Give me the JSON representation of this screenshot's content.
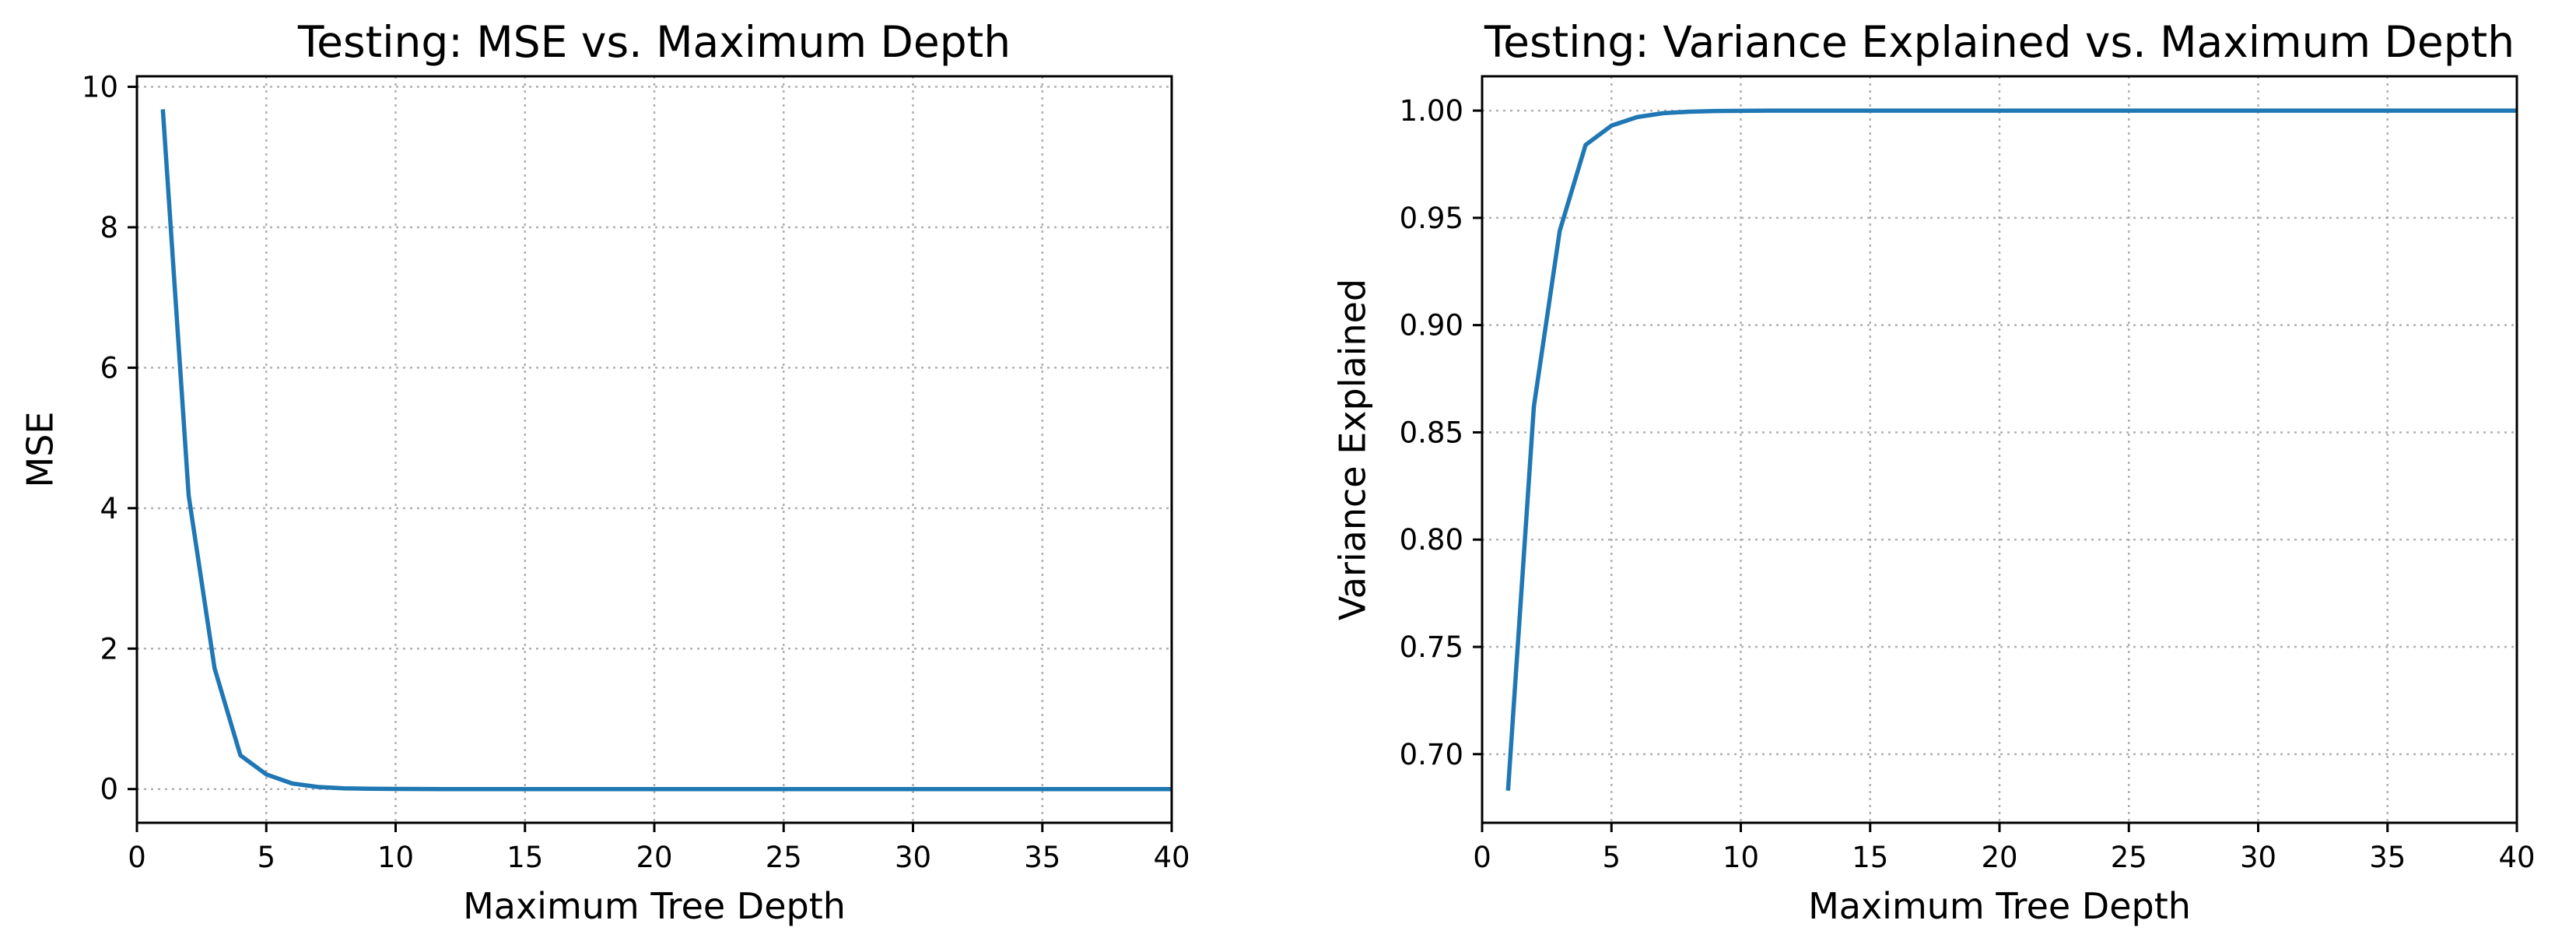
{
  "style": {
    "line_color": "#1f77b4",
    "grid": true,
    "grid_style": "dotted"
  },
  "chart_data": [
    {
      "type": "line",
      "title": "Testing: MSE vs. Maximum Depth",
      "xlabel": "Maximum Tree Depth",
      "ylabel": "MSE",
      "xlim": [
        0,
        40
      ],
      "ylim": [
        -0.48,
        10.15
      ],
      "xticks": [
        0,
        5,
        10,
        15,
        20,
        25,
        30,
        35,
        40
      ],
      "yticks": [
        0,
        2,
        4,
        6,
        8,
        10
      ],
      "xtick_labels": [
        "0",
        "5",
        "10",
        "15",
        "20",
        "25",
        "30",
        "35",
        "40"
      ],
      "ytick_labels": [
        "0",
        "2",
        "4",
        "6",
        "8",
        "10"
      ],
      "series": [
        {
          "x": [
            1,
            2,
            3,
            4,
            5,
            6,
            7,
            8,
            9,
            10,
            11,
            12,
            13,
            14,
            15,
            16,
            17,
            18,
            19,
            20,
            21,
            22,
            23,
            24,
            25,
            26,
            27,
            28,
            29,
            30,
            31,
            32,
            33,
            34,
            35,
            36,
            37,
            38,
            39,
            40
          ],
          "y": [
            9.68,
            4.18,
            1.72,
            0.48,
            0.21,
            0.08,
            0.03,
            0.01,
            0.005,
            0.002,
            0.001,
            0,
            0,
            0,
            0,
            0,
            0,
            0,
            0,
            0,
            0,
            0,
            0,
            0,
            0,
            0,
            0,
            0,
            0,
            0,
            0,
            0,
            0,
            0,
            0,
            0,
            0,
            0,
            0,
            0
          ]
        }
      ]
    },
    {
      "type": "line",
      "title": "Testing: Variance Explained vs. Maximum Depth",
      "xlabel": "Maximum Tree Depth",
      "ylabel": "Variance Explained",
      "xlim": [
        0,
        40
      ],
      "ylim": [
        0.668,
        1.016
      ],
      "xticks": [
        0,
        5,
        10,
        15,
        20,
        25,
        30,
        35,
        40
      ],
      "yticks": [
        0.7,
        0.75,
        0.8,
        0.85,
        0.9,
        0.95,
        1.0
      ],
      "xtick_labels": [
        "0",
        "5",
        "10",
        "15",
        "20",
        "25",
        "30",
        "35",
        "40"
      ],
      "ytick_labels": [
        "0.70",
        "0.75",
        "0.80",
        "0.85",
        "0.90",
        "0.95",
        "1.00"
      ],
      "series": [
        {
          "x": [
            1,
            2,
            3,
            4,
            5,
            6,
            7,
            8,
            9,
            10,
            11,
            12,
            13,
            14,
            15,
            16,
            17,
            18,
            19,
            20,
            21,
            22,
            23,
            24,
            25,
            26,
            27,
            28,
            29,
            30,
            31,
            32,
            33,
            34,
            35,
            36,
            37,
            38,
            39,
            40
          ],
          "y": [
            0.683,
            0.862,
            0.944,
            0.984,
            0.993,
            0.997,
            0.9988,
            0.9995,
            0.9998,
            0.9999,
            1.0,
            1.0,
            1.0,
            1.0,
            1.0,
            1.0,
            1.0,
            1.0,
            1.0,
            1.0,
            1.0,
            1.0,
            1.0,
            1.0,
            1.0,
            1.0,
            1.0,
            1.0,
            1.0,
            1.0,
            1.0,
            1.0,
            1.0,
            1.0,
            1.0,
            1.0,
            1.0,
            1.0,
            1.0,
            1.0
          ]
        }
      ]
    }
  ]
}
